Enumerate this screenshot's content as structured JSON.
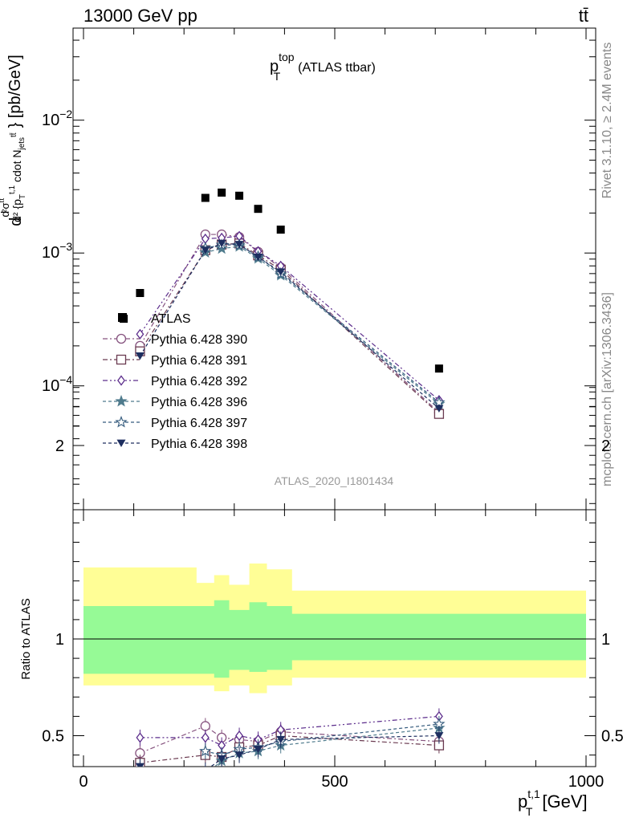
{
  "header": {
    "left": "13000 GeV pp",
    "right": "tt̄"
  },
  "side_text": {
    "rivet": "Rivet 3.1.10, ≥ 2.4M events",
    "mcplots": "mcplots.cern.ch [arXiv:1306.3436]"
  },
  "analysis_id": "ATLAS_2020_I1801434",
  "chart_data": [
    {
      "type": "scatter",
      "title_main": "p",
      "title_sup": "top",
      "title_sub": "T",
      "title_rest": "(ATLAS ttbar)",
      "ylabel": "d²σ^{tt̄}/d²{p_T^{t,1} cdot N_{jets}^{tt̄}} [pb/GeV]",
      "yscale": "log",
      "ylim": [
        1.5e-05,
        0.06
      ],
      "xlim": [
        -20,
        1000
      ],
      "ytick_labels": [
        "10^{-4}",
        "10^{-3}",
        "10^{-2}"
      ],
      "legend_title": "ATLAS",
      "x": [
        80,
        112.5,
        242.5,
        275,
        310,
        347.5,
        392.5,
        707.5
      ],
      "series": [
        {
          "name": "ATLAS",
          "values": [
            0.00032,
            0.0005,
            0.0026,
            0.00285,
            0.0027,
            0.00215,
            0.0015,
            0.000135
          ]
        },
        {
          "name": "Pythia 6.428 390",
          "values": [
            null,
            0.0002,
            0.00138,
            0.00138,
            0.00132,
            0.00102,
            0.00078,
            6.3e-05
          ]
        },
        {
          "name": "Pythia 6.428 391",
          "values": [
            null,
            0.000182,
            0.00105,
            0.00116,
            0.00118,
            0.00096,
            0.00075,
            6.15e-05
          ]
        },
        {
          "name": "Pythia 6.428 392",
          "values": [
            null,
            0.000245,
            0.00128,
            0.0013,
            0.00134,
            0.00103,
            0.0008,
            7.8e-05
          ]
        },
        {
          "name": "Pythia 6.428 396",
          "values": [
            null,
            null,
            0.00101,
            0.00108,
            0.00112,
            0.00091,
            0.00068,
            7.3e-05
          ]
        },
        {
          "name": "Pythia 6.428 397",
          "values": [
            null,
            null,
            0.00109,
            0.00115,
            0.00115,
            0.00094,
            0.0007,
            7.5e-05
          ]
        },
        {
          "name": "Pythia 6.428 398",
          "values": [
            null,
            0.000168,
            0.00105,
            0.00118,
            0.00116,
            0.00093,
            0.00072,
            6.75e-05
          ]
        }
      ]
    },
    {
      "type": "line",
      "ylabel": "Ratio to ATLAS",
      "xlabel_main": "p",
      "xlabel_sup": "t,1",
      "xlabel_sub": "T",
      "xlabel_unit": "[GeV]",
      "xlim": [
        -20,
        1000
      ],
      "ylim": [
        0.35,
        2.35
      ],
      "xtick_labels": [
        "0",
        "500",
        "1000"
      ],
      "ytick_labels": [
        "0.5",
        "1",
        "2"
      ],
      "bands": {
        "bin_edges": [
          0,
          225,
          260,
          290,
          330,
          365,
          415,
          1000
        ],
        "stat_lo": [
          0.82,
          0.82,
          0.8,
          0.84,
          0.83,
          0.84,
          0.89
        ],
        "stat_hi": [
          1.17,
          1.17,
          1.2,
          1.15,
          1.19,
          1.17,
          1.13
        ],
        "total_lo": [
          0.76,
          0.76,
          0.73,
          0.76,
          0.72,
          0.76,
          0.8
        ],
        "total_hi": [
          1.37,
          1.29,
          1.33,
          1.28,
          1.39,
          1.36,
          1.25
        ]
      },
      "series": [
        {
          "name": "Pythia 6.428 390",
          "values": [
            null,
            0.41,
            0.55,
            0.49,
            0.48,
            0.47,
            0.52,
            0.47
          ]
        },
        {
          "name": "Pythia 6.428 391",
          "values": [
            null,
            0.36,
            0.4,
            0.39,
            0.44,
            0.45,
            0.5,
            0.45
          ]
        },
        {
          "name": "Pythia 6.428 392",
          "values": [
            null,
            0.49,
            0.49,
            0.45,
            0.5,
            0.48,
            0.53,
            0.6
          ]
        },
        {
          "name": "Pythia 6.428 396",
          "values": [
            null,
            0.33,
            0.3,
            0.37,
            0.41,
            0.42,
            0.45,
            0.54
          ]
        },
        {
          "name": "Pythia 6.428 397",
          "values": [
            null,
            null,
            0.42,
            0.4,
            0.43,
            0.44,
            0.47,
            0.56
          ]
        },
        {
          "name": "Pythia 6.428 398",
          "values": [
            null,
            0.34,
            0.32,
            0.38,
            0.4,
            0.43,
            0.48,
            0.5
          ]
        }
      ]
    }
  ],
  "colors": {
    "data": "#000000",
    "band_total": "#fffe96",
    "band_stat": "#96fa96",
    "series": [
      "#86537f",
      "#6b3b51",
      "#5c2d8c",
      "#4f7b8d",
      "#355b7d",
      "#1d2e5f"
    ]
  },
  "markers": [
    "circle-open",
    "square-open",
    "diamond-open",
    "star-filled",
    "star-open",
    "triangle-down-filled"
  ],
  "dashes": [
    "6,3,2,3",
    "6,3,2,3",
    "6,3,2,3,2,3",
    "4,3",
    "4,3",
    "4,3"
  ]
}
